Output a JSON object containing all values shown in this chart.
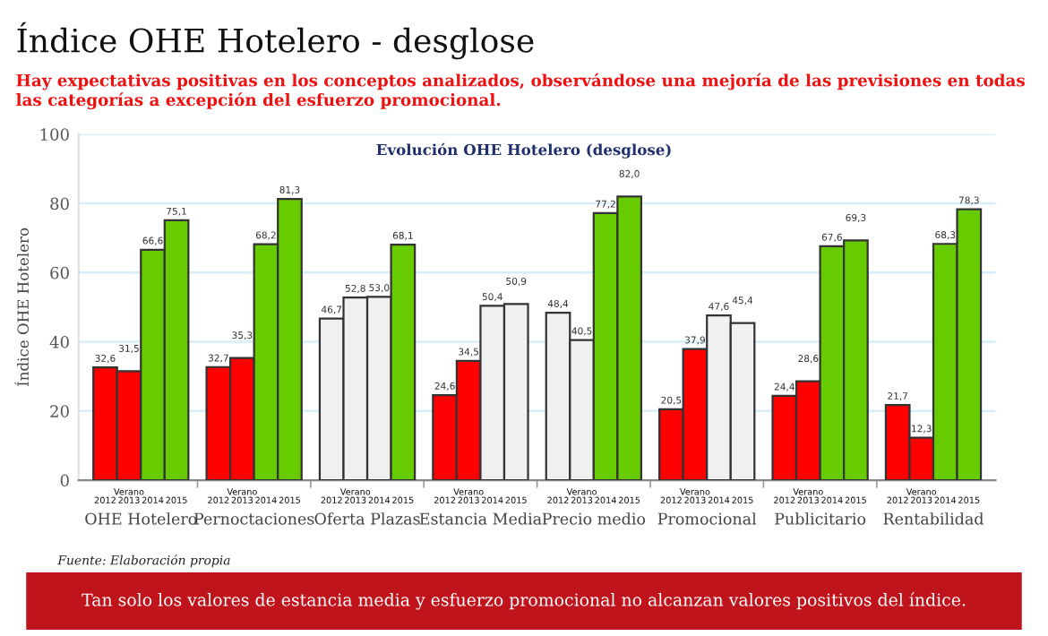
{
  "chart_data": {
    "type": "bar",
    "title": "Índice OHE Hotelero - desglose",
    "subtitle": "Hay expectativas positivas en los conceptos analizados, observándose una mejoría de las previsiones en todas las categorías a excepción del esfuerzo promocional.",
    "ylabel": "Índice OHE Hotelero",
    "categories": [
      "OHE Hotelero",
      "Pernoctaciones",
      "Oferta Plazas",
      "Estancia Media",
      "Precio medio",
      "Promocional",
      "Publicitario",
      "Rentabilidad"
    ],
    "series": [
      {
        "name": "2012",
        "values": [
          32.6,
          32.7,
          46.7,
          24.6,
          48.4,
          20.5,
          24.4,
          21.7
        ],
        "value_labels": [
          "32,6",
          "32,7",
          "46,7",
          "24,6",
          "48,4",
          "20,5",
          "24,4",
          "21,7"
        ],
        "colors": [
          "#ff0000",
          "#ff0000",
          "#f0f0f0",
          "#ff0000",
          "#f0f0f0",
          "#ff0000",
          "#ff0000",
          "#ff0000"
        ]
      },
      {
        "name": "Verano 2013",
        "values": [
          31.5,
          35.3,
          52.8,
          34.5,
          40.5,
          37.9,
          28.6,
          12.3
        ],
        "value_labels": [
          "31,5",
          "35,3",
          "52,8",
          "34,5",
          "40,5",
          "37,9",
          "28,6",
          "12,3"
        ],
        "colors": [
          "#ff0000",
          "#ff0000",
          "#f0f0f0",
          "#ff0000",
          "#f0f0f0",
          "#ff0000",
          "#ff0000",
          "#ff0000"
        ]
      },
      {
        "name": "2014",
        "values": [
          66.6,
          68.2,
          53.0,
          50.4,
          77.2,
          47.6,
          67.6,
          68.3
        ],
        "value_labels": [
          "66,6",
          "68,2",
          "53,0",
          "50,4",
          "77,2",
          "47,6",
          "67,6",
          "68,3"
        ],
        "colors": [
          "#66cc00",
          "#66cc00",
          "#f0f0f0",
          "#f0f0f0",
          "#66cc00",
          "#f0f0f0",
          "#66cc00",
          "#66cc00"
        ]
      },
      {
        "name": "2015",
        "values": [
          75.1,
          81.3,
          68.1,
          50.9,
          82.0,
          45.4,
          69.3,
          78.3
        ],
        "value_labels": [
          "75,1",
          "81,3",
          "68,1",
          "50,9",
          "82,0",
          "45,4",
          "69,3",
          "78,3"
        ],
        "colors": [
          "#66cc00",
          "#66cc00",
          "#66cc00",
          "#f0f0f0",
          "#66cc00",
          "#f0f0f0",
          "#66cc00",
          "#66cc00"
        ]
      }
    ],
    "ylim": [
      0,
      100
    ],
    "yticks": [
      0,
      20,
      40,
      60,
      80,
      100
    ],
    "grid": "y",
    "legend": false,
    "annotations": [
      "Evolución OHE Hotelero (desglose)",
      "Fuente: Elaboración propia",
      "Tan solo los valores de estancia media y esfuerzo promocional no alcanzan valores positivos del índice."
    ]
  }
}
